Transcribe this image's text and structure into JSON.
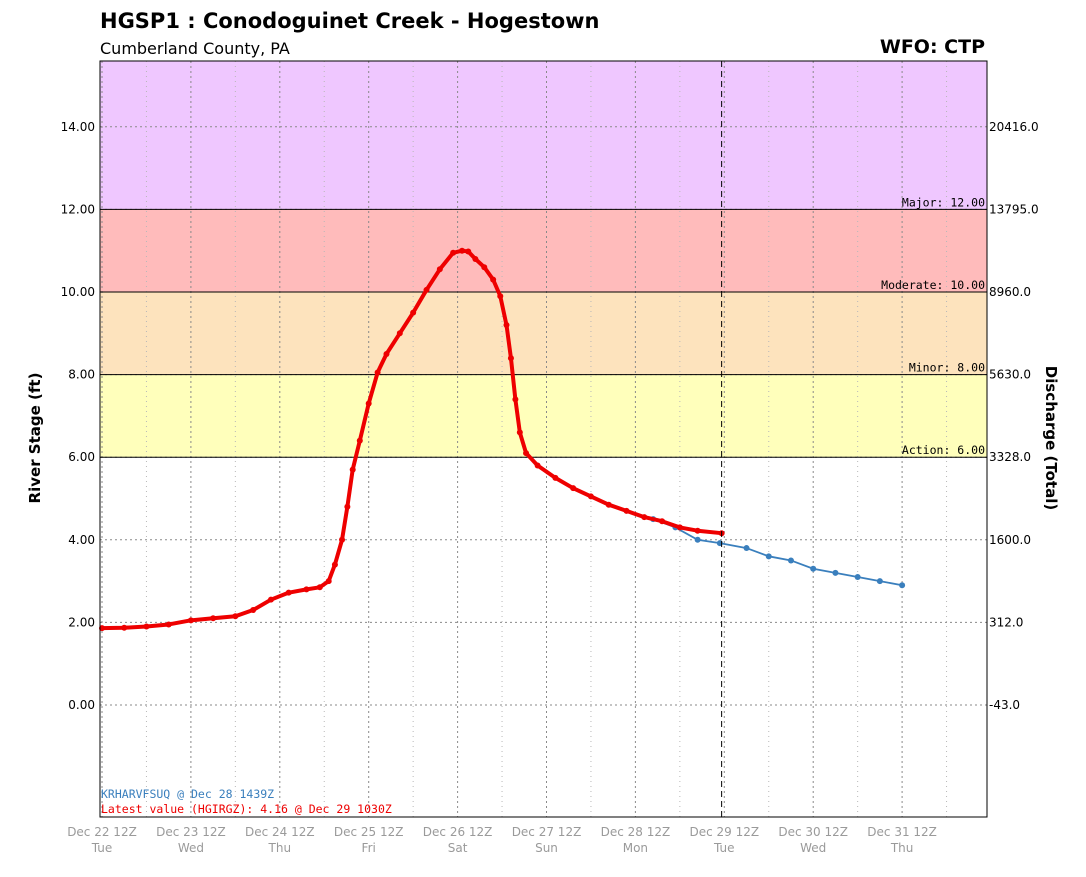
{
  "header": {
    "title": "HGSP1 : Conodoguinet Creek - Hogestown",
    "subtitle": "Cumberland County, PA",
    "wfo": "WFO: CTP"
  },
  "chart_data": {
    "type": "line",
    "ylabel": "River Stage (ft)",
    "ylabel_right": "Discharge (Total)",
    "ylim": [
      -2.7,
      15.6
    ],
    "xlim": [
      "Dec 22 12Z",
      "Jan 01 12Z"
    ],
    "grid": true,
    "y_ticks": [
      "0.00",
      "2.00",
      "4.00",
      "6.00",
      "8.00",
      "10.00",
      "12.00",
      "14.00"
    ],
    "right_ticks": [
      {
        "stage": 0,
        "label": "-43.0"
      },
      {
        "stage": 2,
        "label": "312.0"
      },
      {
        "stage": 4,
        "label": "1600.0"
      },
      {
        "stage": 6,
        "label": "3328.0"
      },
      {
        "stage": 8,
        "label": "5630.0"
      },
      {
        "stage": 10,
        "label": "8960.0"
      },
      {
        "stage": 12,
        "label": "13795.0"
      },
      {
        "stage": 14,
        "label": "20416.0"
      }
    ],
    "x_ticks": [
      {
        "day": 0,
        "date": "Dec 22 12Z",
        "dow": "Tue"
      },
      {
        "day": 1,
        "date": "Dec 23 12Z",
        "dow": "Wed"
      },
      {
        "day": 2,
        "date": "Dec 24 12Z",
        "dow": "Thu"
      },
      {
        "day": 3,
        "date": "Dec 25 12Z",
        "dow": "Fri"
      },
      {
        "day": 4,
        "date": "Dec 26 12Z",
        "dow": "Sat"
      },
      {
        "day": 5,
        "date": "Dec 27 12Z",
        "dow": "Sun"
      },
      {
        "day": 6,
        "date": "Dec 28 12Z",
        "dow": "Mon"
      },
      {
        "day": 7,
        "date": "Dec 29 12Z",
        "dow": "Tue"
      },
      {
        "day": 8,
        "date": "Dec 30 12Z",
        "dow": "Wed"
      },
      {
        "day": 9,
        "date": "Dec 31 12Z",
        "dow": "Thu"
      }
    ],
    "flood_categories": [
      {
        "name": "Action",
        "label": "Action: 6.00",
        "from": 6,
        "to": 8,
        "color": "#ffffbb"
      },
      {
        "name": "Minor",
        "label": "Minor: 8.00",
        "from": 8,
        "to": 10,
        "color": "#fde3bd"
      },
      {
        "name": "Moderate",
        "label": "Moderate: 10.00",
        "from": 10,
        "to": 12,
        "color": "#ffbbbb"
      },
      {
        "name": "Major",
        "label": "Major: 12.00",
        "from": 12,
        "to": 15.6,
        "color": "#efc7ff"
      }
    ],
    "observed": {
      "color": "#ee0000",
      "points": [
        [
          0.0,
          1.86
        ],
        [
          0.25,
          1.87
        ],
        [
          0.5,
          1.9
        ],
        [
          0.75,
          1.95
        ],
        [
          1.0,
          2.05
        ],
        [
          1.25,
          2.1
        ],
        [
          1.5,
          2.15
        ],
        [
          1.7,
          2.3
        ],
        [
          1.9,
          2.55
        ],
        [
          2.1,
          2.72
        ],
        [
          2.3,
          2.8
        ],
        [
          2.45,
          2.85
        ],
        [
          2.55,
          3.0
        ],
        [
          2.62,
          3.4
        ],
        [
          2.7,
          4.0
        ],
        [
          2.76,
          4.8
        ],
        [
          2.82,
          5.7
        ],
        [
          2.9,
          6.4
        ],
        [
          3.0,
          7.3
        ],
        [
          3.1,
          8.05
        ],
        [
          3.2,
          8.5
        ],
        [
          3.35,
          9.0
        ],
        [
          3.5,
          9.5
        ],
        [
          3.65,
          10.05
        ],
        [
          3.8,
          10.55
        ],
        [
          3.95,
          10.95
        ],
        [
          4.05,
          11.0
        ],
        [
          4.12,
          10.98
        ],
        [
          4.2,
          10.8
        ],
        [
          4.3,
          10.6
        ],
        [
          4.4,
          10.3
        ],
        [
          4.48,
          9.9
        ],
        [
          4.55,
          9.2
        ],
        [
          4.6,
          8.4
        ],
        [
          4.65,
          7.4
        ],
        [
          4.7,
          6.6
        ],
        [
          4.77,
          6.1
        ],
        [
          4.9,
          5.8
        ],
        [
          5.1,
          5.5
        ],
        [
          5.3,
          5.25
        ],
        [
          5.5,
          5.05
        ],
        [
          5.7,
          4.85
        ],
        [
          5.9,
          4.7
        ],
        [
          6.1,
          4.55
        ],
        [
          6.3,
          4.45
        ],
        [
          6.5,
          4.3
        ],
        [
          6.7,
          4.22
        ],
        [
          6.97,
          4.16
        ]
      ]
    },
    "forecast": {
      "color": "#3a7fbd",
      "points": [
        [
          6.2,
          4.5
        ],
        [
          6.45,
          4.3
        ],
        [
          6.7,
          4.0
        ],
        [
          6.95,
          3.92
        ],
        [
          7.25,
          3.8
        ],
        [
          7.5,
          3.6
        ],
        [
          7.75,
          3.5
        ],
        [
          8.0,
          3.3
        ],
        [
          8.25,
          3.2
        ],
        [
          8.5,
          3.1
        ],
        [
          8.75,
          3.0
        ],
        [
          9.0,
          2.9
        ]
      ]
    },
    "current_time_day": 6.97,
    "annotations": {
      "forecast_issued": "KRHARVFSUQ @ Dec 28 1439Z",
      "latest_value": "Latest value (HGIRGZ): 4.16 @ Dec 29 1030Z"
    }
  }
}
